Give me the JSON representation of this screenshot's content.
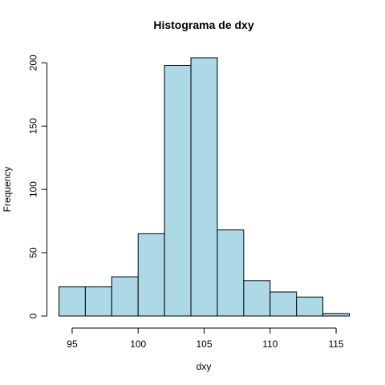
{
  "chart_data": {
    "type": "bar",
    "title": "Histograma de dxy",
    "xlabel": "dxy",
    "ylabel": "Frequency",
    "bin_edges": [
      94,
      96,
      98,
      100,
      102,
      104,
      106,
      108,
      110,
      112,
      114,
      116
    ],
    "values": [
      23,
      23,
      31,
      65,
      198,
      204,
      68,
      28,
      19,
      15,
      2
    ],
    "xlim": [
      94,
      116
    ],
    "ylim": [
      0,
      204
    ],
    "x_ticks": [
      95,
      100,
      105,
      110,
      115
    ],
    "y_ticks": [
      0,
      50,
      100,
      150,
      200
    ],
    "bar_fill": "#add8e6",
    "bar_stroke": "#000000",
    "grid": false,
    "legend": "none"
  }
}
